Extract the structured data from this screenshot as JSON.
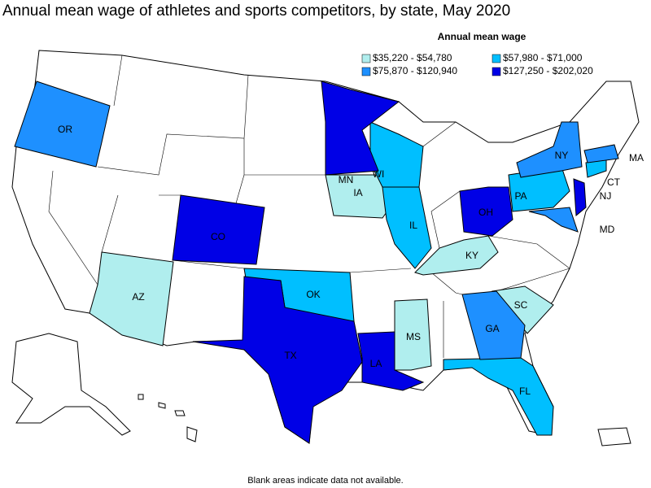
{
  "title": "Annual mean wage of athletes and sports competitors, by state, May 2020",
  "legend": {
    "title": "Annual mean wage",
    "items": [
      {
        "label": "$35,220 - $54,780",
        "color": "#b0eeee",
        "states": [
          "IA",
          "AZ",
          "KY",
          "MS",
          "SC"
        ]
      },
      {
        "label": "$57,980 - $71,000",
        "color": "#00bfff",
        "states": [
          "WI",
          "IL",
          "PA",
          "OK",
          "FL",
          "CT"
        ]
      },
      {
        "label": "$75,870 - $120,940",
        "color": "#1e90ff",
        "states": [
          "OR",
          "NY",
          "GA",
          "MA",
          "MD"
        ]
      },
      {
        "label": "$127,250 - $202,020",
        "color": "#0000e6",
        "states": [
          "MN",
          "CO",
          "OH",
          "TX",
          "LA",
          "NJ"
        ]
      }
    ]
  },
  "footnote": "Blank areas indicate data not available."
}
